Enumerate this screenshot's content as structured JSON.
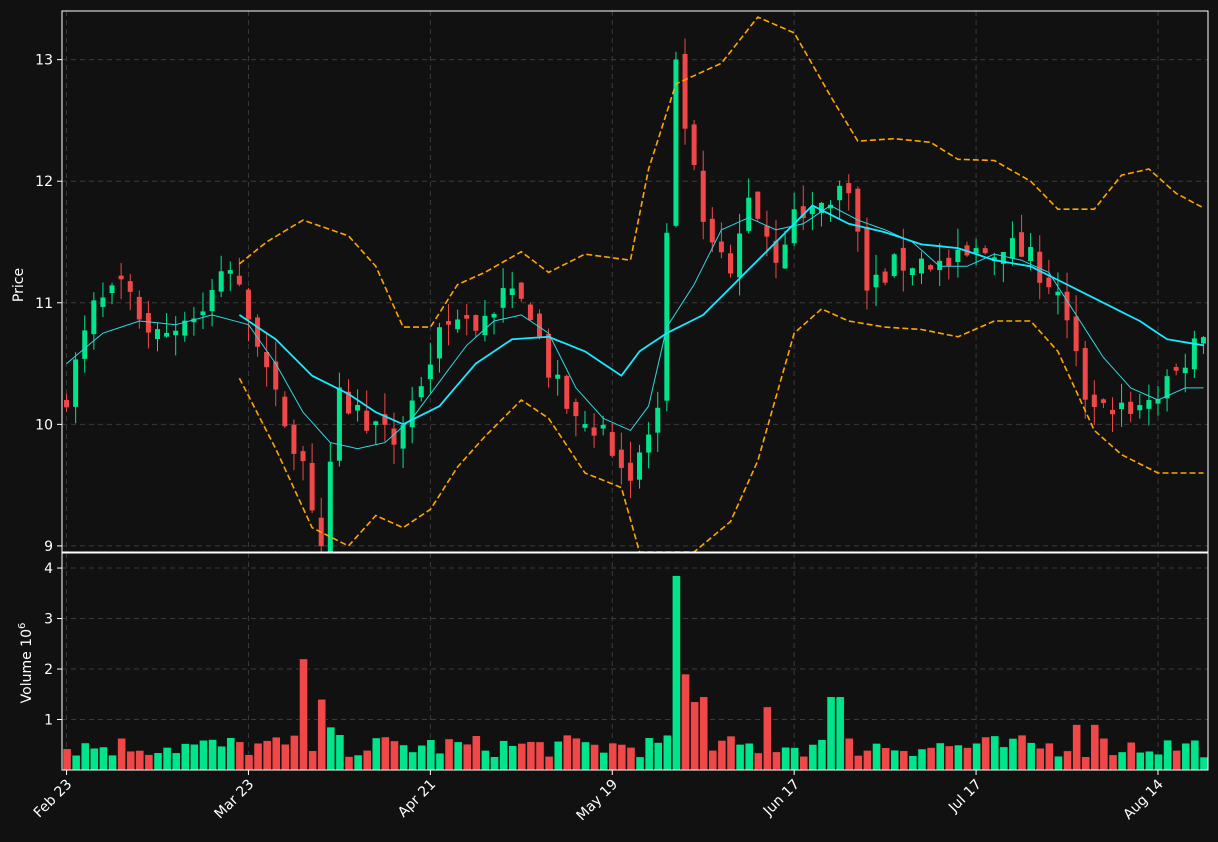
{
  "chart_data": [
    {
      "type": "candlestick",
      "ylabel": "Price",
      "yticks": [
        9,
        10,
        11,
        12,
        13
      ],
      "ylim": [
        8.95,
        13.4
      ],
      "x_tick_labels": [
        "Feb 23",
        "Mar 23",
        "Apr 21",
        "May 19",
        "Jun 17",
        "Jul 17",
        "Aug 14"
      ],
      "x_tick_bar_index": [
        0,
        20,
        40,
        60,
        80,
        100,
        120
      ],
      "num_bars": 126,
      "grid": true,
      "series": [
        {
          "name": "",
          "role": "fast-ma",
          "style": "thin solid cyan"
        },
        {
          "name": "",
          "role": "slow-ma",
          "style": "solid cyan"
        },
        {
          "name": "",
          "role": "bollinger-bands",
          "style": "dashed orange"
        }
      ],
      "close_anchors": [
        [
          0,
          10.25
        ],
        [
          3,
          10.95
        ],
        [
          6,
          11.1
        ],
        [
          10,
          10.7
        ],
        [
          14,
          10.9
        ],
        [
          18,
          11.25
        ],
        [
          21,
          10.7
        ],
        [
          23,
          10.2
        ],
        [
          26,
          9.7
        ],
        [
          28,
          9.0
        ],
        [
          30,
          10.2
        ],
        [
          33,
          10.05
        ],
        [
          36,
          9.85
        ],
        [
          39,
          10.35
        ],
        [
          42,
          10.9
        ],
        [
          45,
          10.8
        ],
        [
          48,
          11.05
        ],
        [
          51,
          10.95
        ],
        [
          53,
          10.45
        ],
        [
          56,
          10.0
        ],
        [
          59,
          10.0
        ],
        [
          62,
          9.55
        ],
        [
          65,
          10.1
        ],
        [
          67,
          12.9
        ],
        [
          70,
          11.6
        ],
        [
          73,
          11.2
        ],
        [
          75,
          11.9
        ],
        [
          78,
          11.4
        ],
        [
          80,
          11.7
        ],
        [
          83,
          11.8
        ],
        [
          86,
          12.0
        ],
        [
          88,
          11.1
        ],
        [
          91,
          11.3
        ],
        [
          94,
          11.35
        ],
        [
          97,
          11.3
        ],
        [
          100,
          11.4
        ],
        [
          103,
          11.5
        ],
        [
          106,
          11.35
        ],
        [
          109,
          11.1
        ],
        [
          112,
          10.25
        ],
        [
          115,
          10.15
        ],
        [
          118,
          10.15
        ],
        [
          121,
          10.3
        ],
        [
          125,
          10.8
        ]
      ],
      "bollinger_upper": [
        [
          19,
          11.32
        ],
        [
          22,
          11.5
        ],
        [
          26,
          11.68
        ],
        [
          31,
          11.55
        ],
        [
          34,
          11.3
        ],
        [
          37,
          10.8
        ],
        [
          40,
          10.8
        ],
        [
          43,
          11.15
        ],
        [
          46,
          11.25
        ],
        [
          50,
          11.42
        ],
        [
          53,
          11.25
        ],
        [
          57,
          11.4
        ],
        [
          62,
          11.35
        ],
        [
          64,
          12.1
        ],
        [
          67,
          12.8
        ],
        [
          72,
          12.97
        ],
        [
          76,
          13.35
        ],
        [
          80,
          13.22
        ],
        [
          84,
          12.7
        ],
        [
          87,
          12.33
        ],
        [
          91,
          12.35
        ],
        [
          95,
          12.32
        ],
        [
          98,
          12.18
        ],
        [
          102,
          12.17
        ],
        [
          106,
          12.0
        ],
        [
          109,
          11.77
        ],
        [
          113,
          11.77
        ],
        [
          116,
          12.05
        ],
        [
          119,
          12.1
        ],
        [
          122,
          11.9
        ],
        [
          125,
          11.78
        ]
      ],
      "bollinger_lower": [
        [
          19,
          10.38
        ],
        [
          23,
          9.8
        ],
        [
          27,
          9.15
        ],
        [
          31,
          9.0
        ],
        [
          34,
          9.25
        ],
        [
          37,
          9.15
        ],
        [
          40,
          9.3
        ],
        [
          43,
          9.65
        ],
        [
          46,
          9.9
        ],
        [
          50,
          10.2
        ],
        [
          53,
          10.05
        ],
        [
          57,
          9.6
        ],
        [
          61,
          9.48
        ],
        [
          63,
          8.95
        ],
        [
          69,
          8.95
        ],
        [
          73,
          9.2
        ],
        [
          76,
          9.7
        ],
        [
          80,
          10.75
        ],
        [
          83,
          10.95
        ],
        [
          86,
          10.85
        ],
        [
          90,
          10.8
        ],
        [
          94,
          10.78
        ],
        [
          98,
          10.72
        ],
        [
          102,
          10.85
        ],
        [
          106,
          10.85
        ],
        [
          109,
          10.6
        ],
        [
          113,
          9.95
        ],
        [
          116,
          9.75
        ],
        [
          120,
          9.6
        ],
        [
          125,
          9.6
        ]
      ],
      "slow_ma_anchors": [
        [
          19,
          10.9
        ],
        [
          23,
          10.7
        ],
        [
          27,
          10.4
        ],
        [
          31,
          10.25
        ],
        [
          34,
          10.1
        ],
        [
          37,
          10.0
        ],
        [
          41,
          10.15
        ],
        [
          45,
          10.5
        ],
        [
          49,
          10.7
        ],
        [
          53,
          10.72
        ],
        [
          57,
          10.6
        ],
        [
          61,
          10.4
        ],
        [
          63,
          10.6
        ],
        [
          66,
          10.75
        ],
        [
          70,
          10.9
        ],
        [
          74,
          11.2
        ],
        [
          78,
          11.5
        ],
        [
          82,
          11.8
        ],
        [
          86,
          11.65
        ],
        [
          90,
          11.58
        ],
        [
          94,
          11.48
        ],
        [
          98,
          11.45
        ],
        [
          102,
          11.35
        ],
        [
          106,
          11.3
        ],
        [
          110,
          11.15
        ],
        [
          114,
          11.0
        ],
        [
          118,
          10.85
        ],
        [
          121,
          10.7
        ],
        [
          125,
          10.65
        ]
      ],
      "fast_ma_anchors": [
        [
          0,
          10.5
        ],
        [
          4,
          10.75
        ],
        [
          8,
          10.85
        ],
        [
          12,
          10.82
        ],
        [
          16,
          10.9
        ],
        [
          20,
          10.82
        ],
        [
          23,
          10.5
        ],
        [
          26,
          10.1
        ],
        [
          29,
          9.85
        ],
        [
          32,
          9.8
        ],
        [
          35,
          9.85
        ],
        [
          38,
          10.05
        ],
        [
          41,
          10.35
        ],
        [
          44,
          10.65
        ],
        [
          47,
          10.85
        ],
        [
          50,
          10.9
        ],
        [
          53,
          10.75
        ],
        [
          56,
          10.3
        ],
        [
          59,
          10.05
        ],
        [
          62,
          9.95
        ],
        [
          64,
          10.15
        ],
        [
          66,
          10.8
        ],
        [
          69,
          11.15
        ],
        [
          72,
          11.6
        ],
        [
          75,
          11.7
        ],
        [
          78,
          11.6
        ],
        [
          81,
          11.65
        ],
        [
          84,
          11.8
        ],
        [
          87,
          11.68
        ],
        [
          90,
          11.6
        ],
        [
          93,
          11.5
        ],
        [
          96,
          11.3
        ],
        [
          99,
          11.3
        ],
        [
          102,
          11.4
        ],
        [
          105,
          11.35
        ],
        [
          108,
          11.25
        ],
        [
          111,
          10.9
        ],
        [
          114,
          10.55
        ],
        [
          117,
          10.3
        ],
        [
          120,
          10.2
        ],
        [
          123,
          10.3
        ],
        [
          125,
          10.3
        ]
      ]
    },
    {
      "type": "bar",
      "ylabel": "Volume  10",
      "ylabel_exponent": "6",
      "yticks": [
        1,
        2,
        3,
        4
      ],
      "ylim": [
        0,
        4.1
      ],
      "x_tick_labels": [
        "Feb 23",
        "Mar 23",
        "Apr 21",
        "May 19",
        "Jun 17",
        "Jul 17",
        "Aug 14"
      ],
      "grid": true,
      "spikes": [
        [
          26,
          2.2
        ],
        [
          28,
          1.4
        ],
        [
          29,
          0.85
        ],
        [
          67,
          3.85
        ],
        [
          68,
          1.9
        ],
        [
          69,
          1.35
        ],
        [
          70,
          1.45
        ],
        [
          77,
          1.25
        ],
        [
          84,
          1.45
        ],
        [
          85,
          1.45
        ],
        [
          111,
          0.9
        ],
        [
          113,
          0.9
        ]
      ],
      "base_range": [
        0.25,
        0.7
      ]
    }
  ],
  "colors": {
    "background": "#111111",
    "up": "#00e58c",
    "down": "#f04848",
    "ma_fast": "#2ed6e0",
    "ma_slow": "#1ae8ff",
    "bollinger": "#ffa500",
    "grid": "#3a3a3a",
    "axis": "#ffffff"
  }
}
